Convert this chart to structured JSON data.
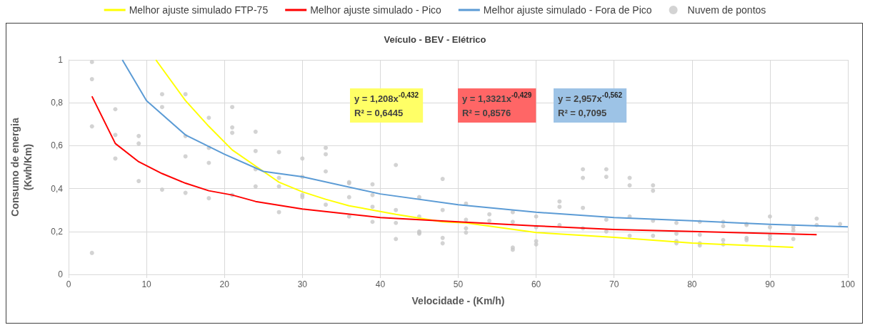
{
  "chart_data": {
    "type": "scatter",
    "title": "Veículo - BEV - Elétrico",
    "xlabel": "Velocidade - (Km/h)",
    "ylabel": "Consumo de energia\n(Kwh/Km)",
    "legend": "top",
    "grid": true,
    "marker": "circle",
    "xlim": [
      0,
      100
    ],
    "xticks": [
      0,
      10,
      20,
      30,
      40,
      50,
      60,
      70,
      80,
      90,
      100
    ],
    "ylim": [
      0,
      1
    ],
    "yticks": [
      0,
      {
        "value": 0.2,
        "label": "0,2"
      },
      {
        "value": 0.4,
        "label": "0,4"
      },
      {
        "value": 0.6,
        "label": "0,6"
      },
      {
        "value": 0.8,
        "label": "0,8"
      },
      1
    ],
    "annotations": [
      "y = 1,208x$^{-0,432}$\nR² = 0,6445",
      "y = 1,3321x$^{-0,429}$\nR² = 0,8576",
      "y = 2,957x$^{-0,562}$\nR² = 0,7095"
    ],
    "series": [
      {
        "name": "Melhor ajuste simulado FTP-75",
        "type": "line",
        "marker": "none",
        "color": "#ffff00",
        "x": [
          11.2,
          15,
          18,
          21,
          24,
          27,
          30,
          33,
          36,
          39,
          42,
          48,
          51,
          60,
          70,
          80,
          93
        ],
        "values": [
          1,
          0.81,
          0.69,
          0.58,
          0.505,
          0.43,
          0.385,
          0.35,
          0.32,
          0.3,
          0.28,
          0.245,
          0.24,
          0.195,
          0.173,
          0.146,
          0.126
        ]
      },
      {
        "name": "Melhor ajuste simulado - Pico",
        "type": "line",
        "marker": "none",
        "color": "#ff0000",
        "x": [
          3,
          6,
          9,
          12,
          15,
          18,
          21,
          24,
          30,
          40,
          50,
          60,
          70,
          80,
          96
        ],
        "values": [
          0.83,
          0.61,
          0.525,
          0.47,
          0.425,
          0.39,
          0.37,
          0.34,
          0.305,
          0.265,
          0.245,
          0.226,
          0.209,
          0.2,
          0.185
        ]
      },
      {
        "name": "Melhor ajuste simulado - Fora de Pico",
        "type": "line",
        "marker": "none",
        "color": "#5b9bd5",
        "x": [
          6.9,
          10,
          15,
          20,
          25,
          30,
          40,
          50,
          60,
          70,
          80,
          90,
          100
        ],
        "values": [
          1,
          0.81,
          0.65,
          0.56,
          0.48,
          0.455,
          0.375,
          0.325,
          0.29,
          0.265,
          0.25,
          0.233,
          0.222
        ]
      },
      {
        "name": "Nuvem de pontos",
        "type": "scatter",
        "color": "#c8c8c8",
        "x": [
          3,
          3,
          3,
          3,
          6,
          6,
          6,
          9,
          9,
          9,
          12,
          12,
          12,
          15,
          15,
          15,
          15,
          18,
          18,
          18,
          18,
          21,
          21,
          21,
          21,
          24,
          24,
          24,
          24,
          27,
          27,
          27,
          27,
          30,
          30,
          30,
          30,
          33,
          33,
          33,
          33,
          36,
          36,
          36,
          36,
          39,
          39,
          39,
          39,
          42,
          42,
          42,
          42,
          45,
          45,
          45,
          45,
          45,
          48,
          48,
          48,
          48,
          51,
          51,
          51,
          51,
          54,
          54,
          57,
          57,
          57,
          57,
          60,
          60,
          60,
          60,
          63,
          63,
          63,
          66,
          66,
          66,
          66,
          69,
          69,
          69,
          69,
          72,
          72,
          72,
          72,
          75,
          75,
          75,
          75,
          78,
          78,
          78,
          78,
          81,
          81,
          81,
          81,
          84,
          84,
          84,
          84,
          87,
          87,
          87,
          87,
          90,
          90,
          90,
          90,
          93,
          93,
          93,
          96,
          96,
          99
        ],
        "values": [
          0.99,
          0.91,
          0.69,
          0.1,
          0.77,
          0.65,
          0.54,
          0.645,
          0.61,
          0.435,
          0.84,
          0.78,
          0.395,
          0.84,
          0.645,
          0.55,
          0.38,
          0.73,
          0.59,
          0.52,
          0.355,
          0.78,
          0.685,
          0.66,
          0.37,
          0.665,
          0.575,
          0.49,
          0.41,
          0.57,
          0.45,
          0.41,
          0.29,
          0.54,
          0.455,
          0.37,
          0.36,
          0.59,
          0.56,
          0.48,
          0.325,
          0.43,
          0.425,
          0.36,
          0.27,
          0.42,
          0.37,
          0.315,
          0.245,
          0.51,
          0.3,
          0.24,
          0.165,
          0.36,
          0.27,
          0.2,
          0.195,
          0.19,
          0.445,
          0.3,
          0.17,
          0.145,
          0.33,
          0.255,
          0.215,
          0.195,
          0.28,
          0.25,
          0.29,
          0.245,
          0.125,
          0.115,
          0.27,
          0.22,
          0.155,
          0.14,
          0.34,
          0.315,
          0.23,
          0.49,
          0.45,
          0.31,
          0.215,
          0.49,
          0.455,
          0.255,
          0.2,
          0.45,
          0.415,
          0.27,
          0.18,
          0.415,
          0.39,
          0.25,
          0.18,
          0.24,
          0.19,
          0.155,
          0.145,
          0.245,
          0.185,
          0.145,
          0.135,
          0.245,
          0.225,
          0.16,
          0.14,
          0.235,
          0.23,
          0.17,
          0.16,
          0.27,
          0.22,
          0.18,
          0.165,
          0.22,
          0.205,
          0.165,
          0.26,
          0.23,
          0.235
        ]
      }
    ]
  }
}
